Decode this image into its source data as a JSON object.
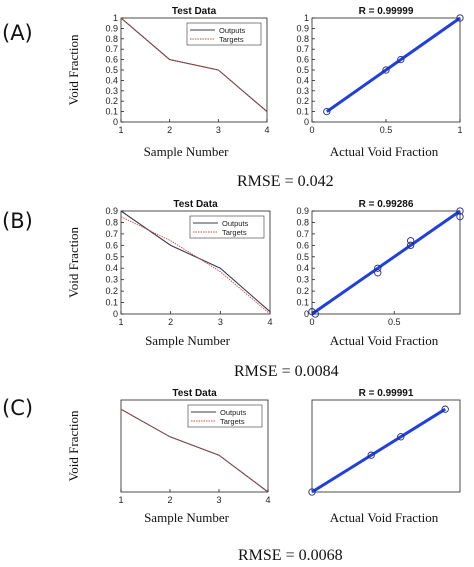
{
  "panel_labels": [
    "(A)",
    "(B)",
    "(C)"
  ],
  "rmse_labels": [
    "RMSE = 0.042",
    "RMSE = 0.0084",
    "RMSE = 0.0068"
  ],
  "colors": {
    "outputs": "#3b3b4a",
    "targets": "#c0504d",
    "fit": "#1f3fe0",
    "points": "#1f2a80",
    "axis": "#222222"
  },
  "chart_data": [
    {
      "type": "line",
      "title": "Test Data",
      "xlabel": "Sample Number",
      "ylabel": "Void Fraction",
      "x": [
        1,
        2,
        3,
        4
      ],
      "xlim": [
        1,
        4
      ],
      "ylim": [
        0,
        1
      ],
      "xticks": [
        "1",
        "2",
        "3",
        "4"
      ],
      "yticks": [
        "0",
        "0.1",
        "0.2",
        "0.3",
        "0.4",
        "0.5",
        "0.6",
        "0.7",
        "0.8",
        "0.9",
        "1"
      ],
      "legend_position": "top-right",
      "series": [
        {
          "name": "Outputs",
          "values": [
            1.0,
            0.6,
            0.5,
            0.1
          ]
        },
        {
          "name": "Targets",
          "values": [
            1.0,
            0.6,
            0.5,
            0.1
          ]
        }
      ]
    },
    {
      "type": "scatter",
      "title": "R = 0.99999",
      "xlabel": "Actual Void Fraction",
      "ylabel": "",
      "xlim": [
        0,
        1
      ],
      "ylim": [
        0,
        1
      ],
      "x": [
        0.1,
        0.5,
        0.6,
        1.0
      ],
      "y": [
        0.1,
        0.5,
        0.6,
        1.0
      ],
      "fit_line": [
        [
          0.1,
          0.1
        ],
        [
          1.0,
          1.0
        ]
      ]
    },
    {
      "type": "line",
      "title": "Test Data",
      "xlabel": "Sample Number",
      "ylabel": "Void Fraction",
      "x": [
        1,
        2,
        3,
        4
      ],
      "xlim": [
        1,
        4
      ],
      "ylim": [
        0,
        0.9
      ],
      "xticks": [
        "1",
        "2",
        "3",
        "4"
      ],
      "yticks": [
        "0",
        "0.1",
        "0.2",
        "0.3",
        "0.4",
        "0.5",
        "0.6",
        "0.7",
        "0.8",
        "0.9"
      ],
      "legend_position": "top-right",
      "series": [
        {
          "name": "Outputs",
          "values": [
            0.9,
            0.6,
            0.4,
            0.02
          ]
        },
        {
          "name": "Targets",
          "values": [
            0.85,
            0.64,
            0.37,
            0.0
          ]
        }
      ]
    },
    {
      "type": "scatter",
      "title": "R = 0.99286",
      "xlabel": "Actual Void Fraction",
      "ylabel": "",
      "xlim": [
        0,
        0.9
      ],
      "ylim": [
        0,
        0.9
      ],
      "x": [
        0.0,
        0.02,
        0.4,
        0.4,
        0.6,
        0.6,
        0.9,
        0.9
      ],
      "y": [
        0.02,
        0.0,
        0.4,
        0.36,
        0.64,
        0.6,
        0.9,
        0.85
      ],
      "fit_line": [
        [
          0.0,
          0.0
        ],
        [
          0.9,
          0.9
        ]
      ]
    },
    {
      "type": "line",
      "title": "Test Data",
      "xlabel": "Sample Number",
      "ylabel": "Void Fraction",
      "x": [
        1,
        2,
        3,
        4
      ],
      "xlim": [
        1,
        4
      ],
      "ylim": [
        0,
        1
      ],
      "xticks": [
        "1",
        "2",
        "3",
        "4"
      ],
      "yticks": [],
      "legend_position": "top-right",
      "series": [
        {
          "name": "Outputs",
          "values": [
            0.9,
            0.6,
            0.4,
            0.0
          ]
        },
        {
          "name": "Targets",
          "values": [
            0.9,
            0.6,
            0.4,
            0.0
          ]
        }
      ]
    },
    {
      "type": "scatter",
      "title": "R = 0.99991",
      "xlabel": "Actual Void Fraction",
      "ylabel": "",
      "xlim": [
        0,
        1
      ],
      "ylim": [
        0,
        1
      ],
      "x": [
        0.0,
        0.4,
        0.6,
        0.9
      ],
      "y": [
        0.0,
        0.4,
        0.6,
        0.9
      ],
      "xticks": [],
      "yticks": [],
      "fit_line": [
        [
          0.0,
          0.0
        ],
        [
          0.9,
          0.9
        ]
      ]
    }
  ]
}
